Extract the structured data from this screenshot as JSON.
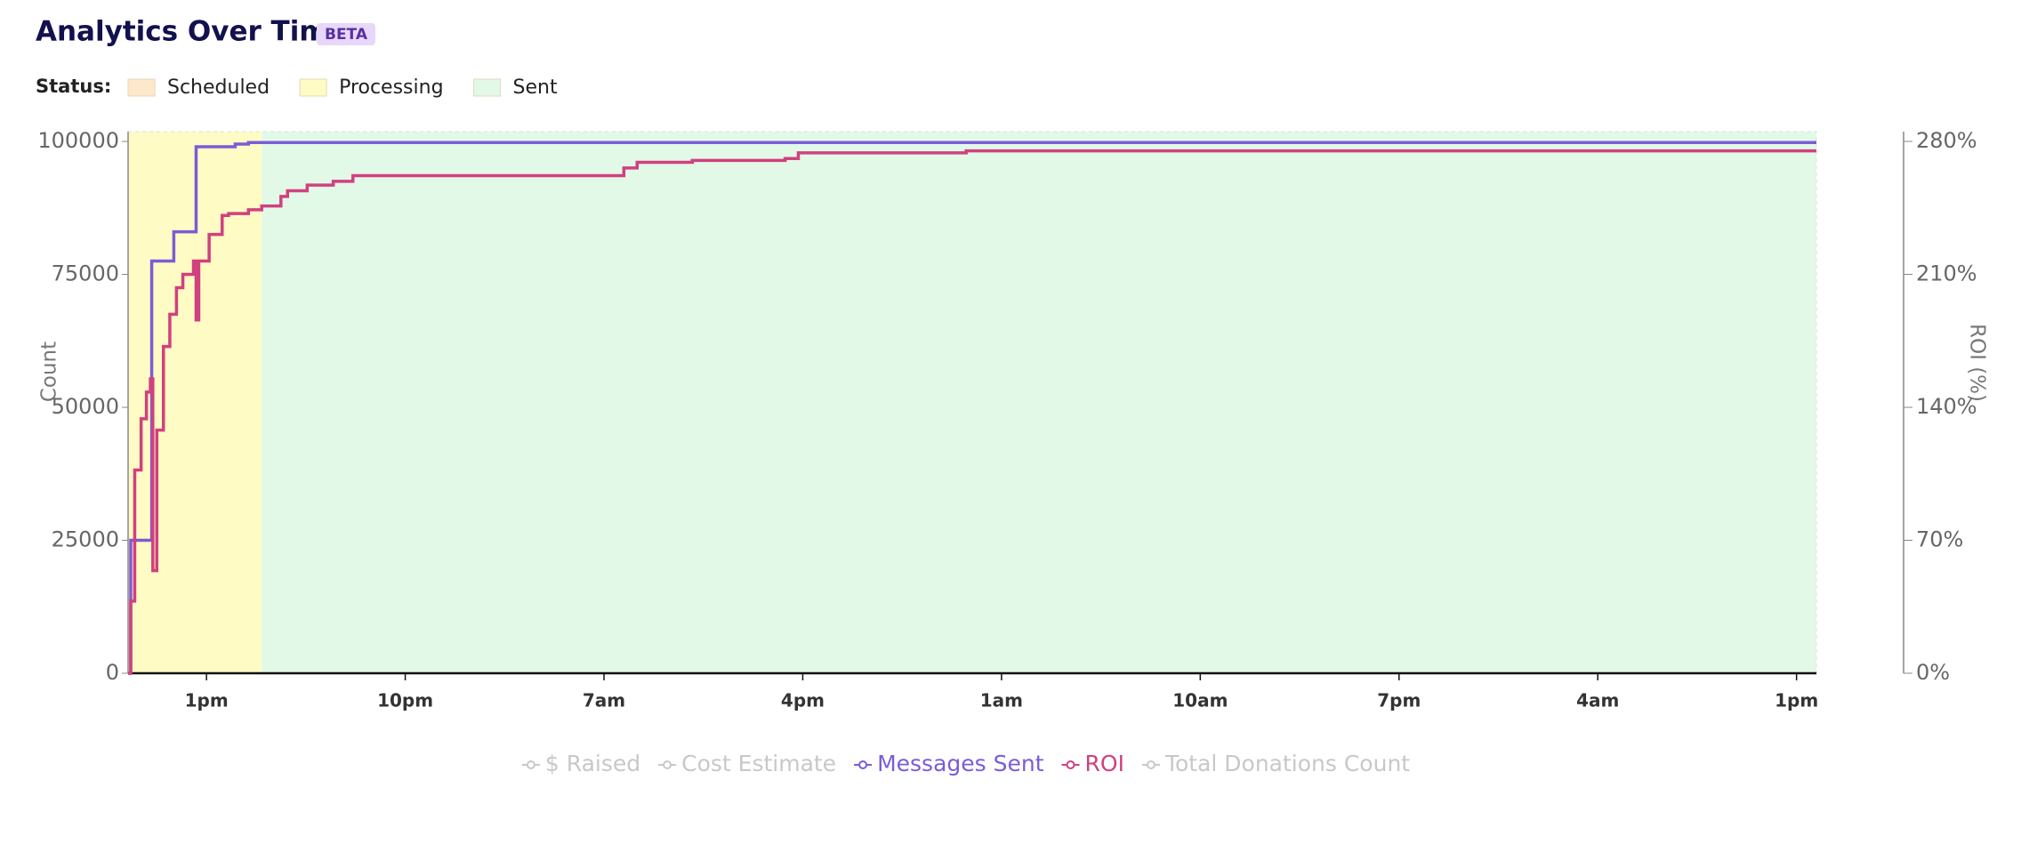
{
  "chart_data": {
    "type": "line",
    "title": "Analytics Over Time",
    "badge": "BETA",
    "status_label": "Status:",
    "statuses": [
      {
        "name": "Scheduled",
        "color": "#fde8cc"
      },
      {
        "name": "Processing",
        "color": "#fffbc4",
        "start": 9.45,
        "end": 15.5
      },
      {
        "name": "Sent",
        "color": "#e3f9e8",
        "start": 15.5,
        "end": 85.9
      }
    ],
    "y_label": "Count",
    "y2_label": "ROI (%)",
    "xlim": [
      9.45,
      85.9
    ],
    "xticks": [
      {
        "value": 13,
        "label": "1pm"
      },
      {
        "value": 22,
        "label": "10pm"
      },
      {
        "value": 31,
        "label": "7am"
      },
      {
        "value": 40,
        "label": "4pm"
      },
      {
        "value": 49,
        "label": "1am"
      },
      {
        "value": 58,
        "label": "10am"
      },
      {
        "value": 67,
        "label": "7pm"
      },
      {
        "value": 76,
        "label": "4am"
      },
      {
        "value": 85,
        "label": "1pm"
      }
    ],
    "ylim": [
      0,
      100000
    ],
    "yticks": [
      0,
      25000,
      50000,
      75000,
      100000
    ],
    "y2lim": [
      0,
      280
    ],
    "y2ticks": [
      {
        "value": 0,
        "label": "0%"
      },
      {
        "value": 70,
        "label": "70%"
      },
      {
        "value": 140,
        "label": "140%"
      },
      {
        "value": 210,
        "label": "210%"
      },
      {
        "value": 280,
        "label": "280%"
      }
    ],
    "step": true,
    "series": [
      {
        "name": "$ Raised",
        "color": "#c8c8c8",
        "hidden": true
      },
      {
        "name": "Cost Estimate",
        "color": "#c8c8c8",
        "hidden": true
      },
      {
        "name": "Messages Sent",
        "color": "#7b5cd6",
        "x": [
          9.45,
          9.57,
          10.52,
          11.52,
          12.53,
          14.3,
          14.9,
          85.9
        ],
        "values": [
          0,
          25000,
          77500,
          83000,
          99000,
          99500,
          99800,
          99800
        ]
      },
      {
        "name": "ROI",
        "color": "#d1407f",
        "axis": "y2",
        "x": [
          9.45,
          9.57,
          9.75,
          10.04,
          10.28,
          10.46,
          10.57,
          10.75,
          11.05,
          11.34,
          11.64,
          11.93,
          12.41,
          12.53,
          12.65,
          13.12,
          13.71,
          14.0,
          14.9,
          15.5,
          16.37,
          16.67,
          17.56,
          18.74,
          19.63,
          21.4,
          31.9,
          32.5,
          35.0,
          39.2,
          39.8,
          47.4,
          85.9
        ],
        "values": [
          0,
          38,
          107,
          134,
          148,
          155,
          54,
          128,
          172,
          189,
          203,
          210,
          217,
          186,
          217,
          231,
          241,
          242,
          244,
          246,
          251,
          254,
          257,
          259,
          262,
          262,
          266,
          269,
          270,
          271,
          274,
          275,
          275
        ]
      },
      {
        "name": "Total Donations Count",
        "color": "#c8c8c8",
        "hidden": true
      }
    ]
  }
}
